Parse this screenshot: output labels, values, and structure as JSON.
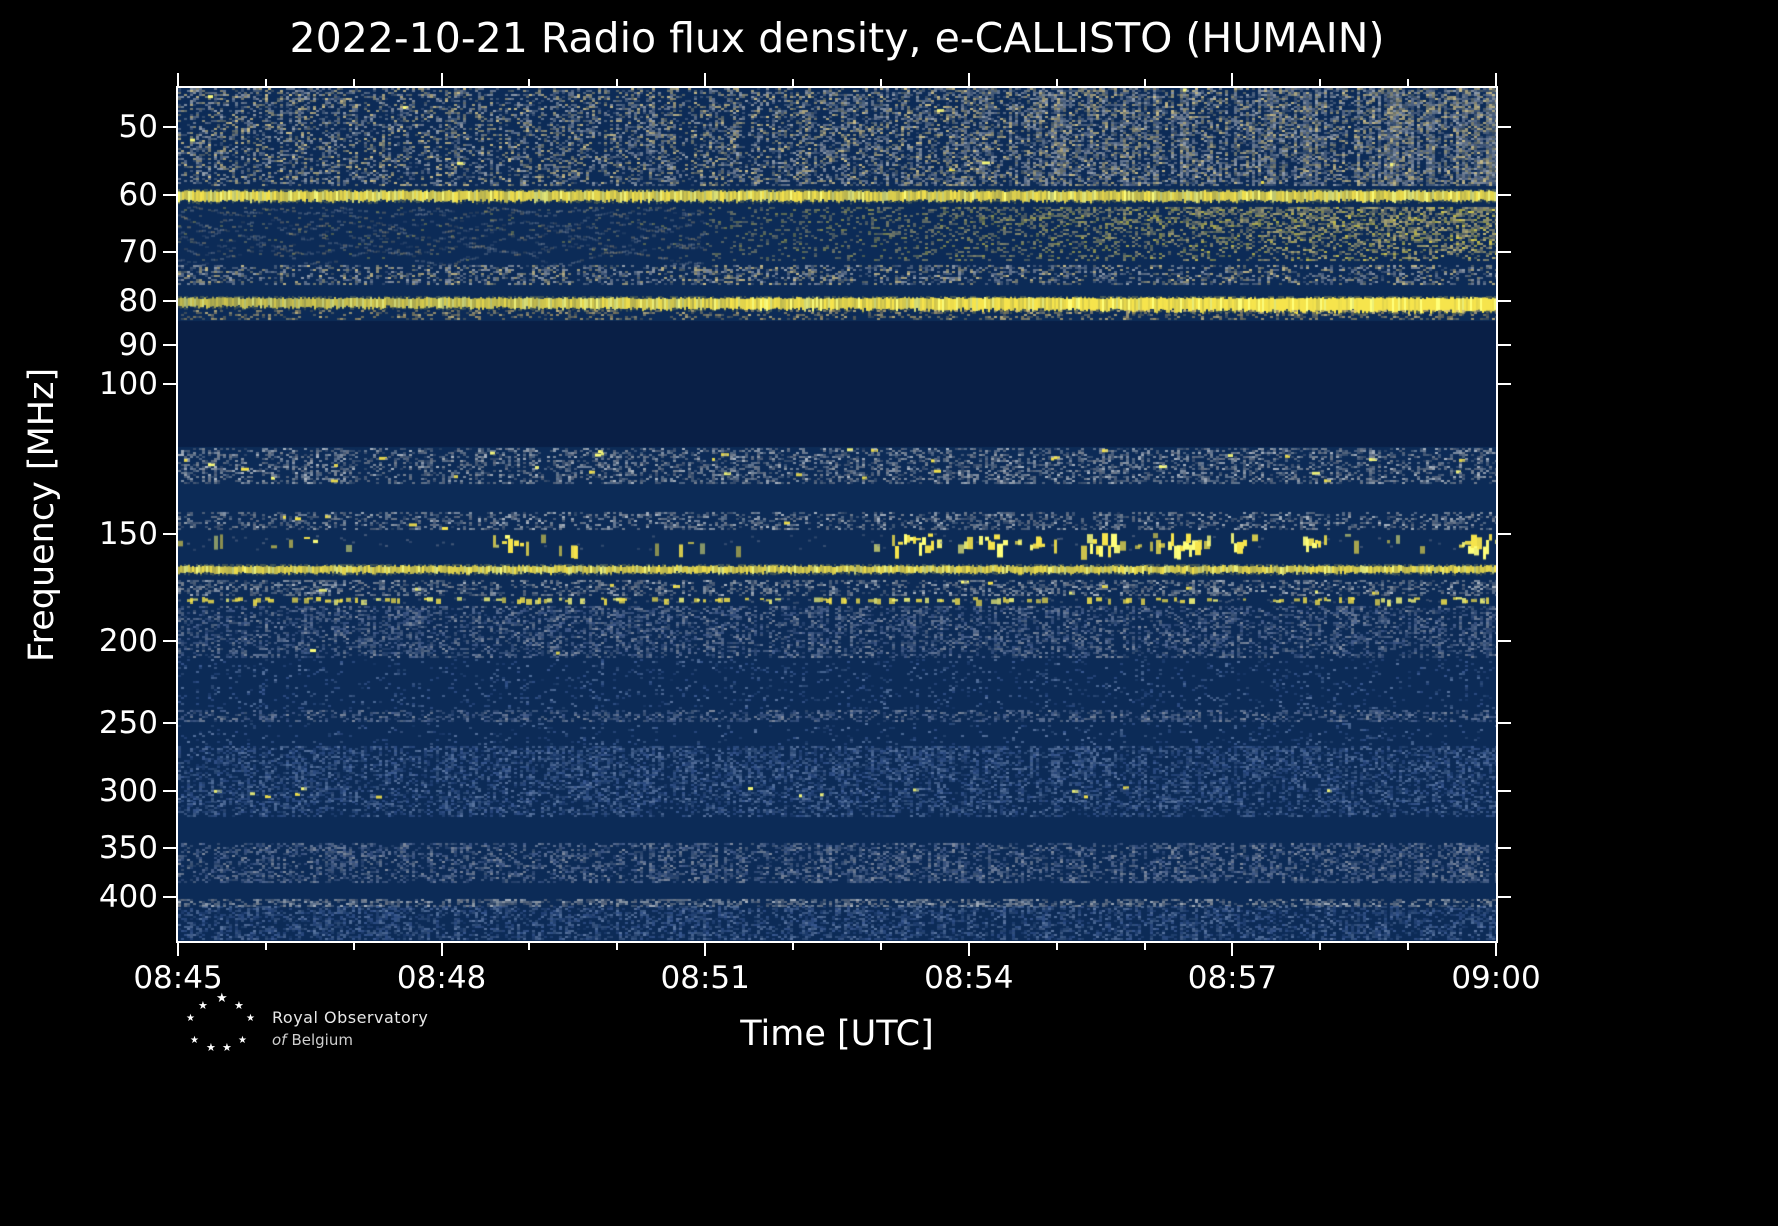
{
  "chart_data": {
    "type": "heatmap",
    "title": "2022-10-21 Radio flux density, e-CALLISTO (HUMAIN)",
    "xlabel": "Time [UTC]",
    "ylabel": "Frequency [MHz]",
    "x_ticks": [
      "08:45",
      "08:48",
      "08:51",
      "08:54",
      "08:57",
      "09:00"
    ],
    "x_minutes": 15,
    "y_scale": "log",
    "y_range_mhz": [
      45,
      450
    ],
    "y_ticks": [
      50,
      60,
      70,
      80,
      90,
      100,
      150,
      200,
      250,
      300,
      350,
      400
    ],
    "legend": "none",
    "grid": false,
    "colors": {
      "background": "#0c2b57",
      "dark": "#091f46",
      "yellow": "#f6e44c",
      "bright_yellow": "#ffff7a",
      "palettes": {
        "graytan": [
          "#8e96a2",
          "#b3a87e",
          "#6f7d95",
          "#d4c48c",
          "#9aa4b0"
        ],
        "gray": [
          "#99a2ac",
          "#7e8794",
          "#b4bcc6",
          "#6a7486"
        ],
        "bluegray": [
          "#5a6f96",
          "#8791a3",
          "#475f8e",
          "#6e7f9e"
        ],
        "blue": [
          "#3c5b93",
          "#53709d",
          "#2f4e85",
          "#5f79a4"
        ],
        "tan": [
          "#c7b67e",
          "#a6986e",
          "#8f845f"
        ]
      }
    },
    "bands": [
      {
        "name": "top-noise",
        "kind": "noise",
        "f0": 45,
        "f1": 58.5,
        "palette": "graytan",
        "density": 0.38,
        "profile": "right",
        "boost_from": 0.38,
        "boost": 1.9,
        "yellow_dots": 0.012
      },
      {
        "name": "line-60mhz",
        "kind": "hline",
        "f0": 59.5,
        "f1": 61.0,
        "intensity": 0.95
      },
      {
        "name": "band-62-71-wavy-then-bright",
        "kind": "wavy",
        "f0": 62,
        "f1": 71.5,
        "transition": 0.4,
        "nwaves": 7
      },
      {
        "name": "band-73-76",
        "kind": "noise",
        "f0": 72.5,
        "f1": 76.5,
        "palette": "graytan",
        "density": 0.4,
        "yellow_dots": 0.008
      },
      {
        "name": "line-80mhz",
        "kind": "hline",
        "f0": 79.3,
        "f1": 81.7,
        "intensity": 1.0,
        "grow": true
      },
      {
        "name": "band-82-84",
        "kind": "noise",
        "f0": 82,
        "f1": 84,
        "palette": "tan",
        "density": 0.3
      },
      {
        "name": "quiet-85-118",
        "kind": "dark",
        "f0": 84.5,
        "f1": 118.5
      },
      {
        "name": "aircraft-119-131",
        "kind": "noise",
        "f0": 119,
        "f1": 131,
        "palette": "gray",
        "density": 0.4,
        "yellow_dots": 0.1
      },
      {
        "name": "band-142-148",
        "kind": "noise",
        "f0": 141.5,
        "f1": 148.5,
        "palette": "gray",
        "density": 0.35,
        "yellow_dots": 0.05,
        "clusters": [
          {
            "t": 0.082,
            "w": 0.012,
            "a": 6
          }
        ]
      },
      {
        "name": "band-150-157-bursts",
        "kind": "dash",
        "f0": 149.5,
        "f1": 157,
        "density": 0.55,
        "base": 0.12,
        "clusters": [
          {
            "t": 0.1,
            "w": 0.01,
            "a": 0.8
          },
          {
            "t": 0.255,
            "w": 0.012,
            "a": 1.2
          },
          {
            "t": 0.3,
            "w": 0.008,
            "a": 0.8
          },
          {
            "t": 0.38,
            "w": 0.006,
            "a": 0.7
          },
          {
            "t": 0.56,
            "w": 0.02,
            "a": 1.6
          },
          {
            "t": 0.615,
            "w": 0.015,
            "a": 1.8
          },
          {
            "t": 0.655,
            "w": 0.01,
            "a": 1.4
          },
          {
            "t": 0.7,
            "w": 0.012,
            "a": 1.6
          },
          {
            "t": 0.76,
            "w": 0.015,
            "a": 1.8
          },
          {
            "t": 0.805,
            "w": 0.01,
            "a": 1.2
          },
          {
            "t": 0.86,
            "w": 0.012,
            "a": 1.4
          },
          {
            "t": 0.985,
            "w": 0.012,
            "a": 2.0
          }
        ]
      },
      {
        "name": "line-165mhz",
        "kind": "hline",
        "f0": 163.5,
        "f1": 166.5,
        "intensity": 0.92
      },
      {
        "name": "band-170-177",
        "kind": "noise",
        "f0": 170,
        "f1": 177,
        "palette": "gray",
        "density": 0.4,
        "yellow_dots": 0.02
      },
      {
        "name": "dash-180mhz",
        "kind": "dash",
        "f0": 178,
        "f1": 181,
        "density": 0.6,
        "base": 0.55,
        "clusters": []
      },
      {
        "name": "band-182-209",
        "kind": "noise",
        "f0": 182,
        "f1": 209,
        "palette": "bluegray",
        "density": 0.42,
        "yellow_dots": 0.004
      },
      {
        "name": "faint-210-240",
        "kind": "noise",
        "f0": 210,
        "f1": 240,
        "palette": "blue",
        "density": 0.1
      },
      {
        "name": "band-241-249",
        "kind": "noise",
        "f0": 241,
        "f1": 249,
        "palette": "bluegray",
        "density": 0.4
      },
      {
        "name": "faint-250-265",
        "kind": "noise",
        "f0": 250,
        "f1": 265,
        "palette": "blue",
        "density": 0.08
      },
      {
        "name": "band-266-290",
        "kind": "noise",
        "f0": 266,
        "f1": 290,
        "palette": "blue",
        "density": 0.5
      },
      {
        "name": "band-290-308-dots",
        "kind": "noise",
        "f0": 290,
        "f1": 308,
        "palette": "blue",
        "density": 0.45,
        "yellow_dots": 0.05,
        "dot_f": 300,
        "clusters": [
          {
            "t": 0.025,
            "w": 0.006,
            "a": 3
          },
          {
            "t": 0.055,
            "w": 0.005,
            "a": 3
          },
          {
            "t": 0.09,
            "w": 0.004,
            "a": 2.5
          },
          {
            "t": 0.15,
            "w": 0.008,
            "a": 3
          },
          {
            "t": 0.175,
            "w": 0.004,
            "a": 2
          },
          {
            "t": 0.44,
            "w": 0.006,
            "a": 3
          },
          {
            "t": 0.475,
            "w": 0.005,
            "a": 2.5
          },
          {
            "t": 0.52,
            "w": 0.005,
            "a": 3
          },
          {
            "t": 0.56,
            "w": 0.004,
            "a": 2
          },
          {
            "t": 0.685,
            "w": 0.008,
            "a": 3.5
          },
          {
            "t": 0.72,
            "w": 0.005,
            "a": 2.5
          },
          {
            "t": 0.92,
            "w": 0.006,
            "a": 2.5
          }
        ]
      },
      {
        "name": "band-308-322",
        "kind": "noise",
        "f0": 308,
        "f1": 322,
        "palette": "blue",
        "density": 0.4
      },
      {
        "name": "band-345-385",
        "kind": "noise",
        "f0": 345,
        "f1": 385,
        "palette": "bluegray",
        "density": 0.42
      },
      {
        "name": "line-405",
        "kind": "noise",
        "f0": 402,
        "f1": 409,
        "palette": "gray",
        "density": 0.5
      },
      {
        "name": "band-409-448",
        "kind": "noise",
        "f0": 409,
        "f1": 448,
        "palette": "blue",
        "density": 0.45
      }
    ]
  },
  "branding": {
    "logo_icon": "star-cluster",
    "line1": "Royal Observatory",
    "line2_prefix": "of",
    "line2": "Belgium"
  }
}
